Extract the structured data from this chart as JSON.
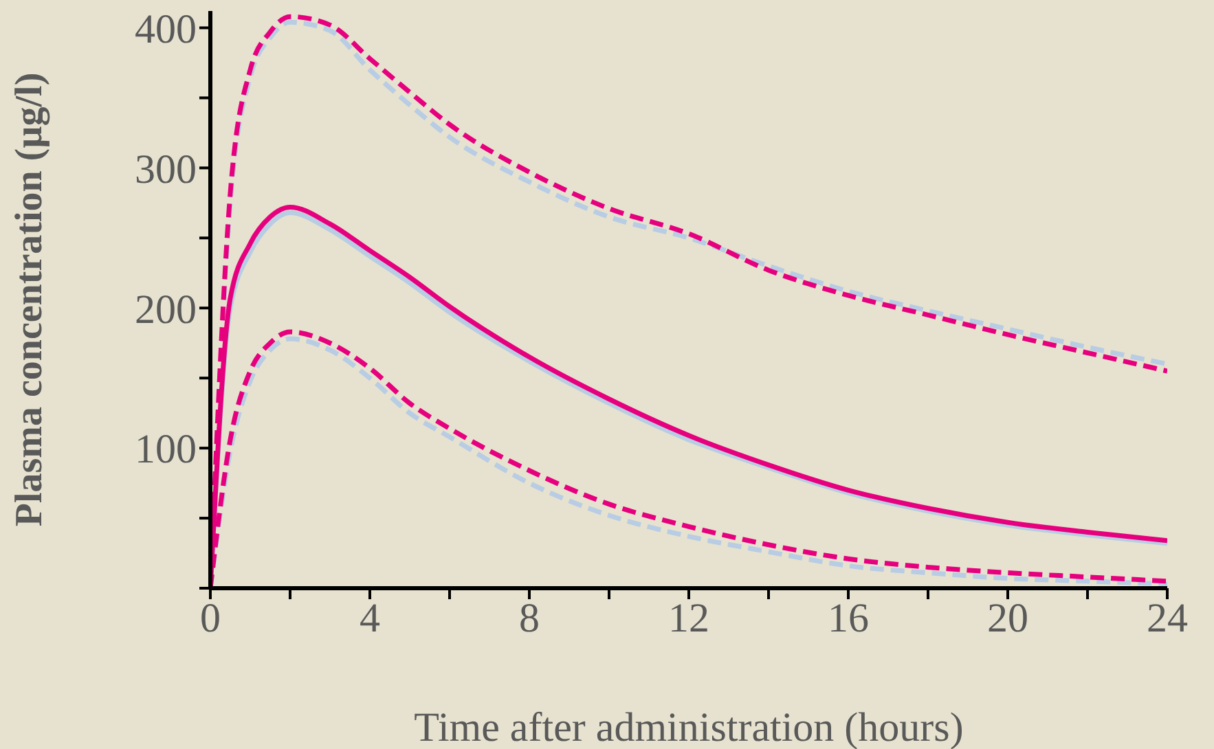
{
  "chart_data": {
    "type": "line",
    "xlabel": "Time after administration (hours)",
    "ylabel": "Plasma concentration (µg/l)",
    "x": [
      0,
      0.5,
      1,
      1.5,
      2,
      3,
      4,
      5,
      6,
      8,
      10,
      12,
      14,
      16,
      18,
      20,
      22,
      24
    ],
    "xlim": [
      0,
      24
    ],
    "xticks": [
      0,
      {
        "value": 2,
        "label": null
      },
      4,
      {
        "value": 6,
        "label": null
      },
      8,
      {
        "value": 10,
        "label": null
      },
      12,
      {
        "value": 14,
        "label": null
      },
      16,
      {
        "value": 18,
        "label": null
      },
      20,
      {
        "value": 22,
        "label": null
      },
      24
    ],
    "ylim": [
      0,
      412
    ],
    "yticks": [
      {
        "value": 0,
        "label": null
      },
      {
        "value": 50,
        "label": null
      },
      100,
      {
        "value": 150,
        "label": null
      },
      200,
      {
        "value": 250,
        "label": null
      },
      300,
      {
        "value": 350,
        "label": null
      },
      400
    ],
    "marker": "none",
    "series": [
      {
        "color": "#b8cce4",
        "line_style": "solid",
        "values": [
          0,
          200,
          240,
          260,
          268,
          256,
          237,
          218,
          197,
          162,
          132,
          106,
          86,
          68,
          55,
          45,
          38,
          32
        ]
      },
      {
        "color": "#b8cce4",
        "line_style": "dashed",
        "values": [
          0,
          275,
          365,
          393,
          404,
          398,
          370,
          345,
          322,
          290,
          265,
          250,
          230,
          212,
          198,
          185,
          172,
          160
        ]
      },
      {
        "color": "#b8cce4",
        "line_style": "dashed",
        "values": [
          0,
          98,
          148,
          170,
          178,
          170,
          150,
          125,
          108,
          75,
          52,
          37,
          26,
          16,
          11,
          7,
          5,
          3
        ]
      },
      {
        "color": "#e6007e",
        "line_style": "solid",
        "values": [
          0,
          207,
          246,
          265,
          272,
          260,
          241,
          222,
          201,
          165,
          135,
          109,
          88,
          70,
          57,
          47,
          40,
          34
        ]
      },
      {
        "color": "#e6007e",
        "line_style": "dashed",
        "values": [
          0,
          282,
          370,
          397,
          408,
          402,
          378,
          354,
          331,
          297,
          271,
          253,
          227,
          209,
          195,
          181,
          168,
          155
        ]
      },
      {
        "color": "#e6007e",
        "line_style": "dashed",
        "values": [
          0,
          106,
          155,
          175,
          183,
          175,
          157,
          132,
          114,
          84,
          60,
          44,
          31,
          21,
          15,
          11,
          8,
          5
        ]
      }
    ]
  }
}
